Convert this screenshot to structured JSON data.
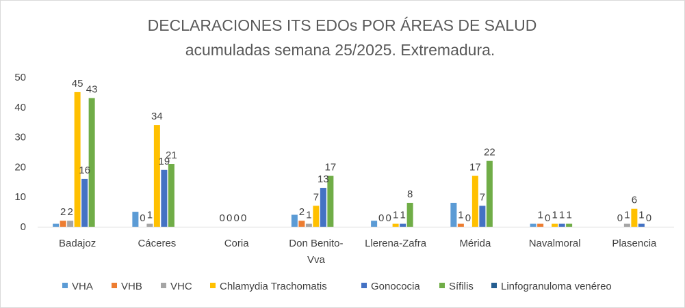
{
  "chart_data": {
    "type": "bar",
    "title": "DECLARACIONES ITS EDOs POR ÁREAS DE SALUD",
    "subtitle": "acumuladas semana 25/2025. Extremadura.",
    "xlabel": "",
    "ylabel": "",
    "ylim": [
      0,
      50
    ],
    "yticks": [
      0,
      10,
      20,
      30,
      40,
      50
    ],
    "grid": false,
    "legend_position": "bottom",
    "categories": [
      "Badajoz",
      "Cáceres",
      "Coria",
      "Don Benito-Vva",
      "Llerena-Zafra",
      "Mérida",
      "Navalmoral",
      "Plasencia"
    ],
    "category_lines": [
      [
        "Badajoz"
      ],
      [
        "Cáceres"
      ],
      [
        "Coria"
      ],
      [
        "Don Benito-",
        "Vva"
      ],
      [
        "Llerena-Zafra"
      ],
      [
        "Mérida"
      ],
      [
        "Navalmoral"
      ],
      [
        "Plasencia"
      ]
    ],
    "series": [
      {
        "name": "VHA",
        "color": "#5b9bd5",
        "values": [
          1,
          5,
          0,
          4,
          2,
          8,
          1,
          0
        ],
        "labels": [
          "",
          "",
          "",
          "",
          "",
          "",
          "",
          ""
        ]
      },
      {
        "name": "VHB",
        "color": "#ed7d31",
        "values": [
          2,
          0,
          0,
          2,
          0,
          1,
          1,
          0
        ],
        "labels": [
          "2",
          "0",
          "0",
          "2",
          "0",
          "1",
          "1",
          "0"
        ]
      },
      {
        "name": "VHC",
        "color": "#a5a5a5",
        "values": [
          2,
          1,
          0,
          1,
          0,
          0,
          0,
          1
        ],
        "labels": [
          "2",
          "1",
          "0",
          "1",
          "0",
          "0",
          "0",
          "1"
        ]
      },
      {
        "name": "Chlamydia Trachomatis",
        "color": "#ffc000",
        "values": [
          45,
          34,
          0,
          7,
          1,
          17,
          1,
          6
        ],
        "labels": [
          "45",
          "34",
          "0",
          "7",
          "1",
          "17",
          "1",
          "6"
        ]
      },
      {
        "name": "Gonococia",
        "color": "#4472c4",
        "values": [
          16,
          19,
          0,
          13,
          1,
          7,
          1,
          1
        ],
        "labels": [
          "16",
          "19",
          "0",
          "13",
          "1",
          "7",
          "1",
          "1"
        ]
      },
      {
        "name": "Sífilis",
        "color": "#70ad47",
        "values": [
          43,
          21,
          0,
          17,
          8,
          22,
          1,
          0
        ],
        "labels": [
          "43",
          "21",
          "",
          "17",
          "8",
          "22",
          "1",
          "0"
        ]
      },
      {
        "name": "Linfogranuloma venéreo",
        "color": "#255e91",
        "values": [
          0,
          0,
          0,
          0,
          0,
          0,
          0,
          0
        ],
        "labels": [
          "",
          "",
          "",
          "",
          "",
          "",
          "",
          ""
        ]
      }
    ]
  }
}
